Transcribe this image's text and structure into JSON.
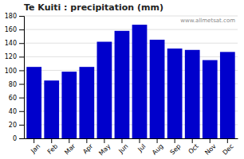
{
  "chart_data": {
    "type": "bar",
    "title": "Te Kuiti : precipitation (mm)",
    "categories": [
      "Jan",
      "Feb",
      "Mar",
      "Apr",
      "May",
      "Jun",
      "Jul",
      "Aug",
      "Sep",
      "Oct",
      "Nov",
      "Dec"
    ],
    "values": [
      105,
      85,
      98,
      105,
      142,
      158,
      167,
      145,
      132,
      130,
      115,
      127
    ],
    "color": "#0000cc",
    "ylim": [
      0,
      180
    ],
    "yticks": [
      0,
      20,
      40,
      60,
      80,
      100,
      120,
      140,
      160,
      180
    ],
    "grid": true,
    "annotations": [
      "www.allmetsat.com"
    ]
  }
}
